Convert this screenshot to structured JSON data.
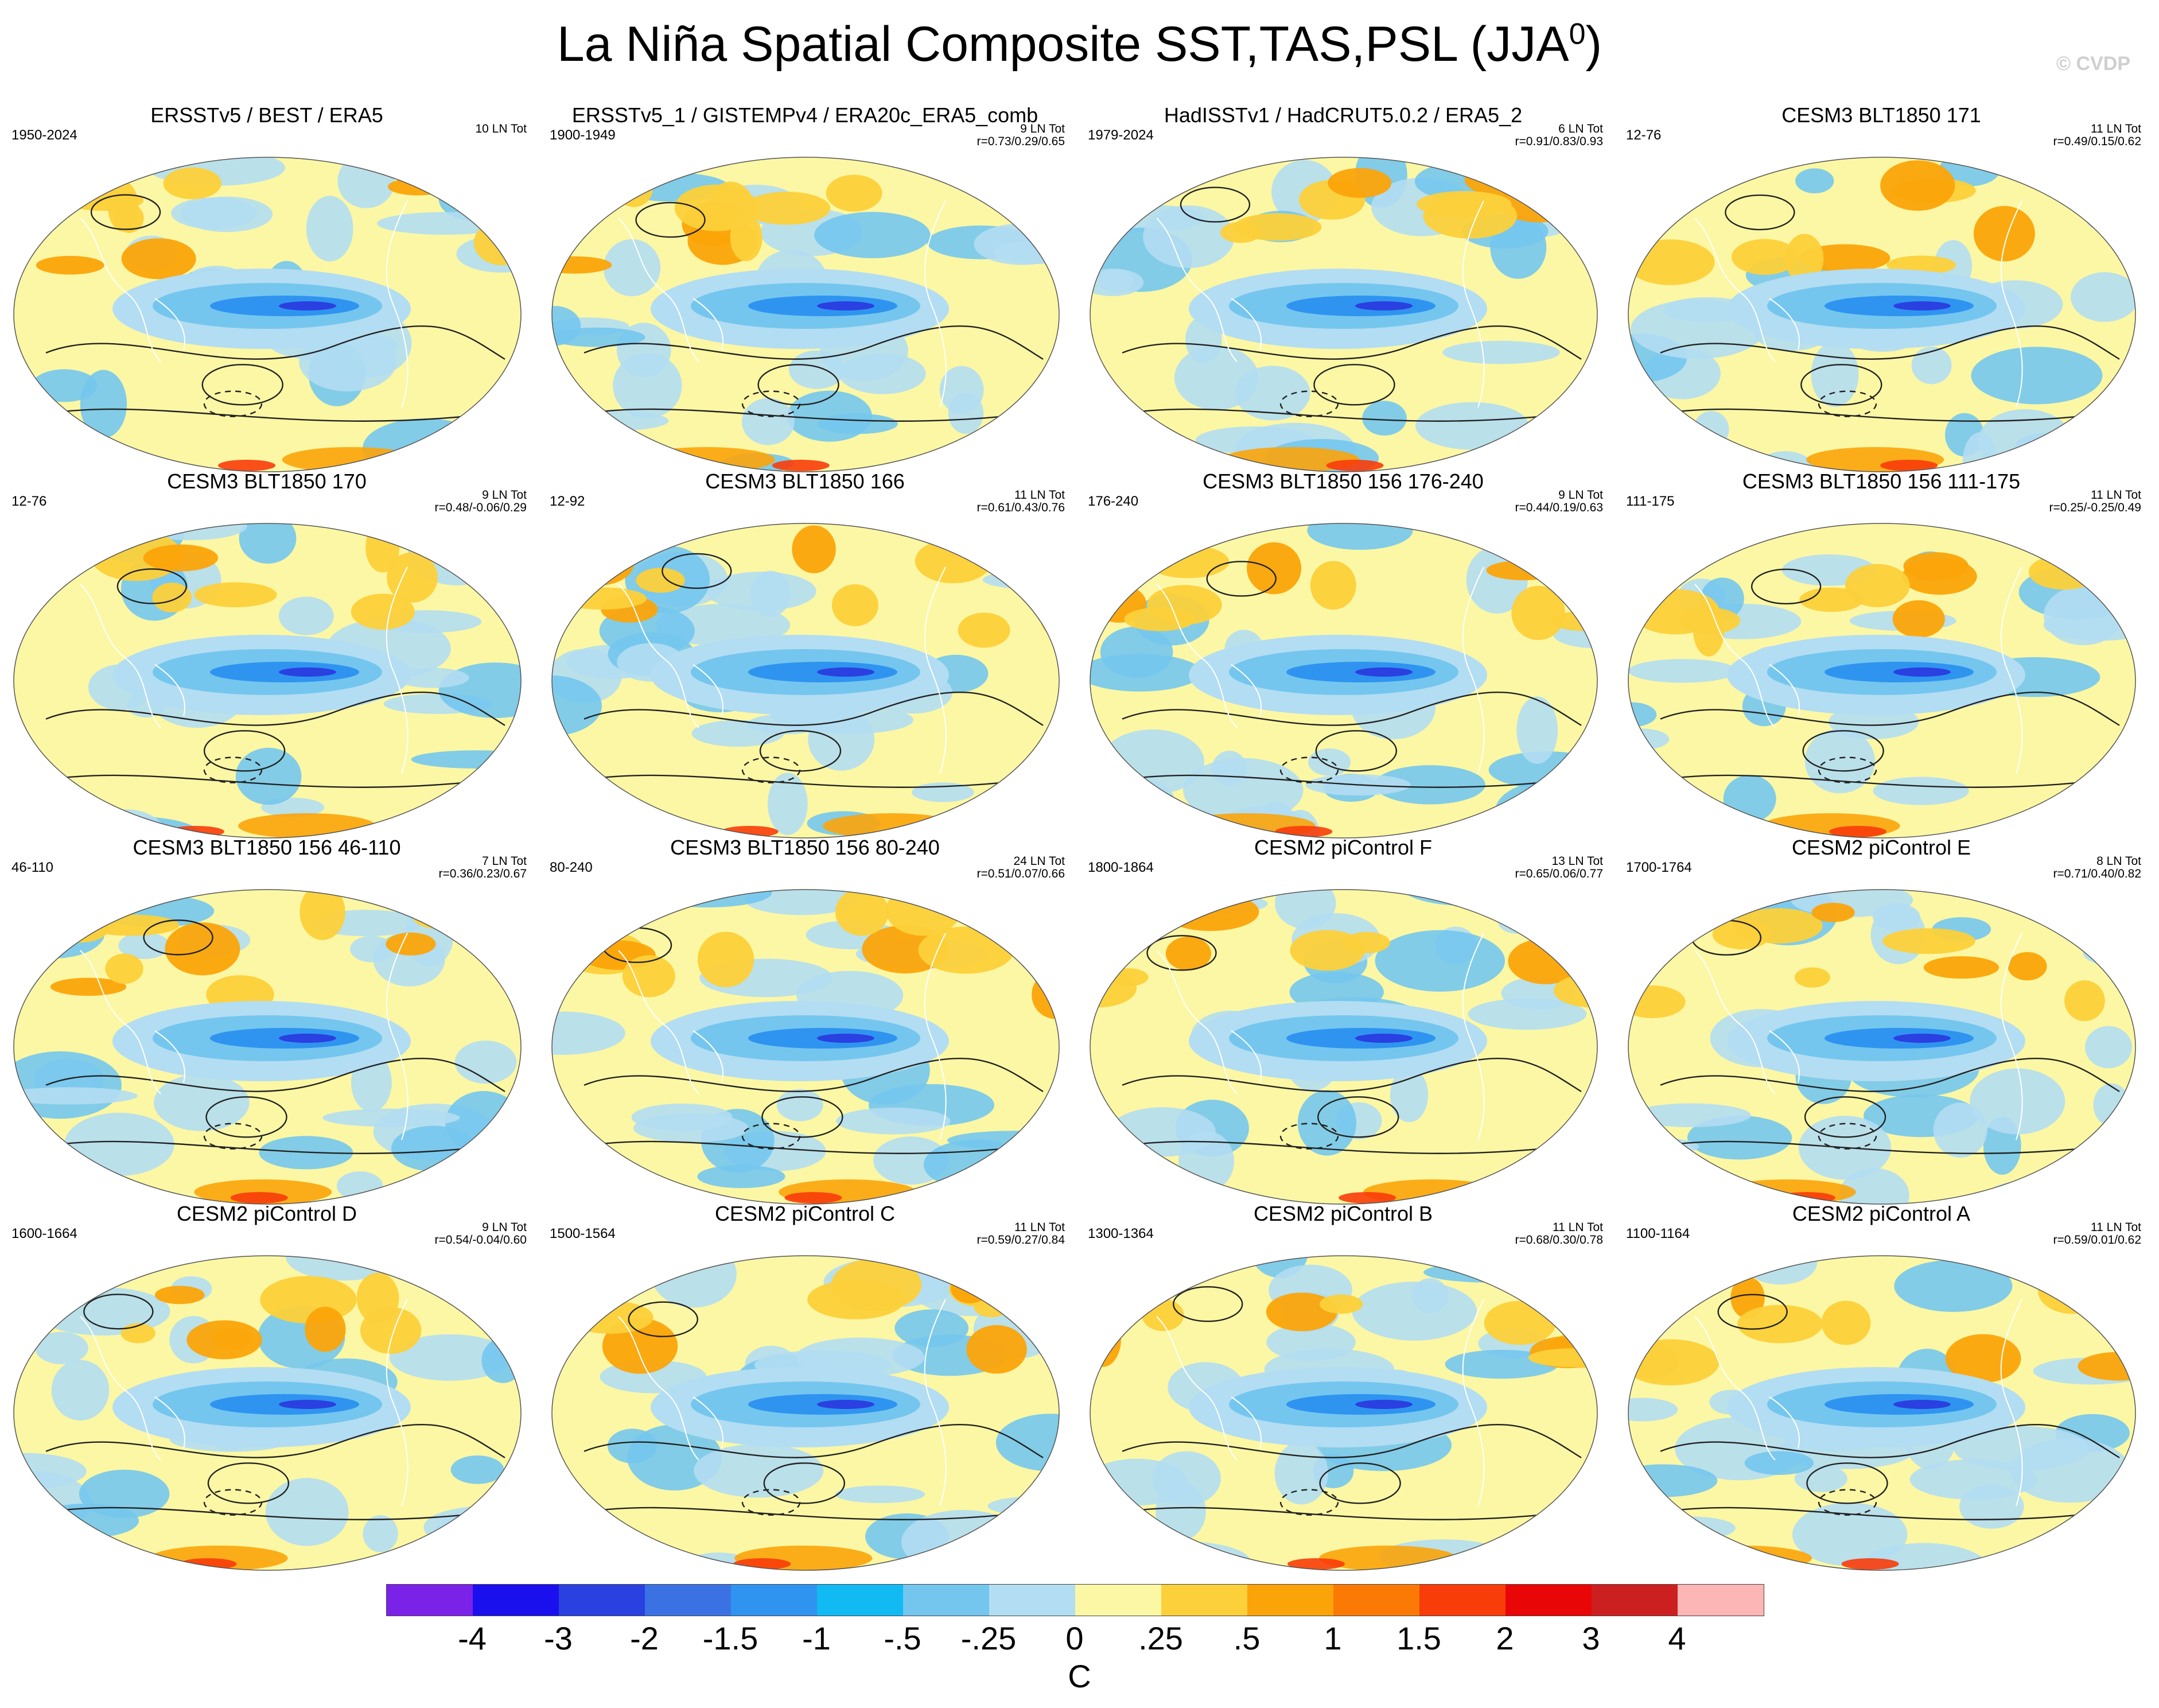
{
  "title": "La Niña Spatial Composite SST,TAS,PSL (JJA",
  "title_sup": "0",
  "title_close": ")",
  "copyright": "© CVDP",
  "panels": [
    {
      "title": "ERSSTv5 / BEST / ERA5",
      "period": "1950-2024",
      "count": "10 LN Tot",
      "stats": ""
    },
    {
      "title": "ERSSTv5_1 / GISTEMPv4 / ERA20c_ERA5_comb",
      "period": "1900-1949",
      "count": "9 LN Tot",
      "stats": "r=0.73/0.29/0.65"
    },
    {
      "title": "HadISSTv1 / HadCRUT5.0.2 / ERA5_2",
      "period": "1979-2024",
      "count": "6 LN Tot",
      "stats": "r=0.91/0.83/0.93"
    },
    {
      "title": "CESM3 BLT1850 171",
      "period": "12-76",
      "count": "11 LN Tot",
      "stats": "r=0.49/0.15/0.62"
    },
    {
      "title": "CESM3 BLT1850 170",
      "period": "12-76",
      "count": "9 LN Tot",
      "stats": "r=0.48/-0.06/0.29"
    },
    {
      "title": "CESM3 BLT1850 166",
      "period": "12-92",
      "count": "11 LN Tot",
      "stats": "r=0.61/0.43/0.76"
    },
    {
      "title": "CESM3 BLT1850 156 176-240",
      "period": "176-240",
      "count": "9 LN Tot",
      "stats": "r=0.44/0.19/0.63"
    },
    {
      "title": "CESM3 BLT1850 156 111-175",
      "period": "111-175",
      "count": "11 LN Tot",
      "stats": "r=0.25/-0.25/0.49"
    },
    {
      "title": "CESM3 BLT1850 156 46-110",
      "period": "46-110",
      "count": "7 LN Tot",
      "stats": "r=0.36/0.23/0.67"
    },
    {
      "title": "CESM3 BLT1850 156 80-240",
      "period": "80-240",
      "count": "24 LN Tot",
      "stats": "r=0.51/0.07/0.66"
    },
    {
      "title": "CESM2 piControl F",
      "period": "1800-1864",
      "count": "13 LN Tot",
      "stats": "r=0.65/0.06/0.77"
    },
    {
      "title": "CESM2 piControl E",
      "period": "1700-1764",
      "count": "8 LN Tot",
      "stats": "r=0.71/0.40/0.82"
    },
    {
      "title": "CESM2 piControl D",
      "period": "1600-1664",
      "count": "9 LN Tot",
      "stats": "r=0.54/-0.04/0.60"
    },
    {
      "title": "CESM2 piControl C",
      "period": "1500-1564",
      "count": "11 LN Tot",
      "stats": "r=0.59/0.27/0.84"
    },
    {
      "title": "CESM2 piControl B",
      "period": "1300-1364",
      "count": "11 LN Tot",
      "stats": "r=0.68/0.30/0.78"
    },
    {
      "title": "CESM2 piControl A",
      "period": "1100-1164",
      "count": "11 LN Tot",
      "stats": "r=0.59/0.01/0.62"
    }
  ],
  "colorbar": {
    "colors": [
      "#7b22e8",
      "#1a10ee",
      "#2a40e0",
      "#3a72e4",
      "#2f94f0",
      "#12baf4",
      "#74c6ee",
      "#b3ddf2",
      "#fcf7a4",
      "#fcd03a",
      "#fba40a",
      "#fb7a06",
      "#f83c0a",
      "#e80606",
      "#cc2020",
      "#fdb6b6"
    ],
    "ticks": [
      "-4",
      "-3",
      "-2",
      "-1.5",
      "-1",
      "-.5",
      "-.25",
      "0",
      ".25",
      ".5",
      "1",
      "1.5",
      "2",
      "3",
      "4"
    ],
    "unit": "C"
  },
  "map_colors": {
    "ocean_neutral": "#fcf7a4",
    "cool_light": "#b3ddf2",
    "cool_mid": "#74c6ee",
    "cool_strong": "#2f94f0",
    "cool_core": "#2a40e0",
    "warm_light": "#fcd03a",
    "warm_mid": "#fba40a",
    "warm_strong": "#f83c0a",
    "contour": "#222222",
    "coast": "#ffffff"
  }
}
